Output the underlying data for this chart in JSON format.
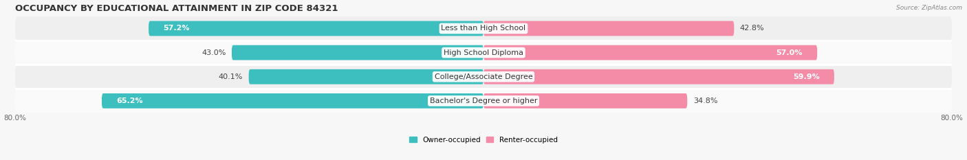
{
  "title": "OCCUPANCY BY EDUCATIONAL ATTAINMENT IN ZIP CODE 84321",
  "source": "Source: ZipAtlas.com",
  "categories": [
    "Less than High School",
    "High School Diploma",
    "College/Associate Degree",
    "Bachelor's Degree or higher"
  ],
  "owner_values": [
    57.2,
    43.0,
    40.1,
    65.2
  ],
  "renter_values": [
    42.8,
    57.0,
    59.9,
    34.8
  ],
  "owner_color": "#3dbfbf",
  "renter_color": "#f48ca8",
  "xlim_left": -80.0,
  "xlim_right": 80.0,
  "bar_height": 0.62,
  "row_bg_even": "#efefef",
  "row_bg_odd": "#fafafa",
  "label_fontsize": 8.0,
  "title_fontsize": 9.5,
  "legend_owner": "Owner-occupied",
  "legend_renter": "Renter-occupied",
  "fig_bg": "#f7f7f7"
}
